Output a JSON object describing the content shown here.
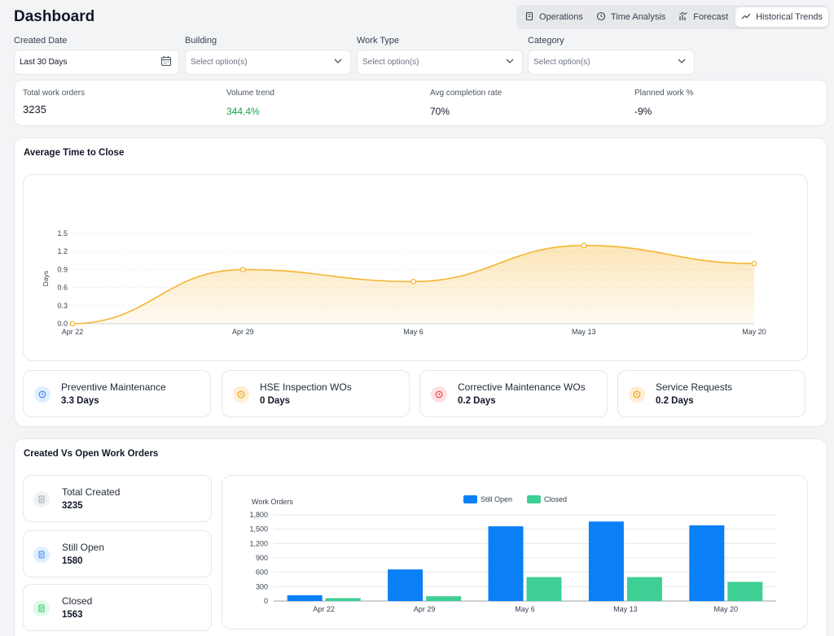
{
  "header": {
    "title": "Dashboard"
  },
  "tabs": [
    {
      "label": "Operations",
      "icon": "building-icon",
      "active": false
    },
    {
      "label": "Time Analysis",
      "icon": "clock-icon",
      "active": false
    },
    {
      "label": "Forecast",
      "icon": "forecast-icon",
      "active": false
    },
    {
      "label": "Historical Trends",
      "icon": "trend-line-icon",
      "active": true
    }
  ],
  "filters": [
    {
      "label": "Created Date",
      "value": "Last 30 Days",
      "placeholder": "",
      "icon": "calendar-icon"
    },
    {
      "label": "Building",
      "value": "",
      "placeholder": "Select option(s)",
      "icon": "chevron-down-icon"
    },
    {
      "label": "Work Type",
      "value": "",
      "placeholder": "Select option(s)",
      "icon": "chevron-down-icon"
    },
    {
      "label": "Category",
      "value": "",
      "placeholder": "Select option(s)",
      "icon": "chevron-down-icon"
    }
  ],
  "kpis": [
    {
      "label": "Total work orders",
      "value": "3235",
      "color": "#111827"
    },
    {
      "label": "Volume trend",
      "value": "344.4%",
      "color": "#16a34a"
    },
    {
      "label": "Avg completion rate",
      "value": "70%",
      "color": "#111827"
    },
    {
      "label": "Planned work %",
      "value": "-9%",
      "color": "#111827"
    }
  ],
  "avg_time": {
    "title": "Average Time to Close",
    "stats": [
      {
        "name": "Preventive Maintenance",
        "value": "3.3 Days",
        "icon": "clock-icon",
        "color": "#3b82f6",
        "bg": "#e0efff"
      },
      {
        "name": "HSE Inspection WOs",
        "value": "0 Days",
        "icon": "clock-icon",
        "color": "#f59e0b",
        "bg": "#fdeed4"
      },
      {
        "name": "Corrective Maintenance WOs",
        "value": "0.2 Days",
        "icon": "clock-icon",
        "color": "#ef4444",
        "bg": "#fde2e2"
      },
      {
        "name": "Service Requests",
        "value": "0.2 Days",
        "icon": "clock-icon",
        "color": "#f59e0b",
        "bg": "#fdeed4"
      }
    ]
  },
  "created_vs_open": {
    "title": "Created Vs Open Work Orders",
    "summary": [
      {
        "name": "Total Created",
        "value": "3235",
        "icon": "document-icon",
        "color": "#9ca3af",
        "bg": "#f1f2f4"
      },
      {
        "name": "Still Open",
        "value": "1580",
        "icon": "document-icon",
        "color": "#3b82f6",
        "bg": "#e0efff"
      },
      {
        "name": "Closed",
        "value": "1563",
        "icon": "document-icon",
        "color": "#22c55e",
        "bg": "#dcfce7"
      }
    ]
  },
  "chart_data": [
    {
      "type": "area",
      "title": "",
      "xlabel": "",
      "ylabel": "Days",
      "categories": [
        "Apr 22",
        "Apr 29",
        "May 6",
        "May 13",
        "May 20"
      ],
      "values": [
        0.0,
        0.9,
        0.7,
        1.3,
        1.0
      ],
      "ylim": [
        0,
        1.5
      ],
      "yticks": [
        "0.0",
        "0.3",
        "0.6",
        "0.9",
        "1.2",
        "1.5"
      ],
      "color": "#f5b532",
      "grid": true
    },
    {
      "type": "bar",
      "title": "",
      "xlabel": "",
      "ylabel": "Work Orders",
      "categories": [
        "Apr 22",
        "Apr 29",
        "May 6",
        "May 13",
        "May 20"
      ],
      "series": [
        {
          "name": "Still Open",
          "values": [
            120,
            660,
            1560,
            1660,
            1580
          ],
          "color": "#0b7ff5"
        },
        {
          "name": "Closed",
          "values": [
            60,
            100,
            500,
            500,
            400
          ],
          "color": "#3fcf94"
        }
      ],
      "ylim": [
        0,
        1800
      ],
      "yticks": [
        "0",
        "300",
        "600",
        "900",
        "1,200",
        "1,500",
        "1,800"
      ],
      "legend": "top-center",
      "grid": true
    }
  ]
}
